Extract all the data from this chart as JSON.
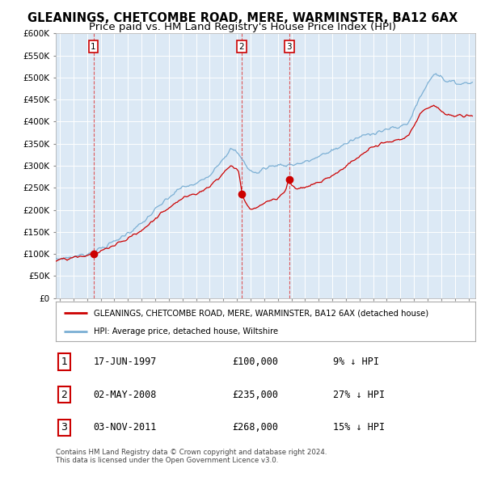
{
  "title": "GLEANINGS, CHETCOMBE ROAD, MERE, WARMINSTER, BA12 6AX",
  "subtitle": "Price paid vs. HM Land Registry's House Price Index (HPI)",
  "title_fontsize": 10.5,
  "subtitle_fontsize": 9.5,
  "fig_bg_color": "#ffffff",
  "plot_bg_color": "#dce9f5",
  "red_line_color": "#cc0000",
  "blue_line_color": "#7bafd4",
  "grid_color": "#ffffff",
  "sale_points": [
    {
      "date_str": "17-JUN-1997",
      "date_num": 1997.46,
      "price": 100000,
      "label": "1"
    },
    {
      "date_str": "02-MAY-2008",
      "date_num": 2008.33,
      "price": 235000,
      "label": "2"
    },
    {
      "date_str": "03-NOV-2011",
      "date_num": 2011.84,
      "price": 268000,
      "label": "3"
    }
  ],
  "vline_dates": [
    1997.46,
    2008.33,
    2011.84
  ],
  "ylim": [
    0,
    600000
  ],
  "yticks": [
    0,
    50000,
    100000,
    150000,
    200000,
    250000,
    300000,
    350000,
    400000,
    450000,
    500000,
    550000,
    600000
  ],
  "xlim_start": 1994.7,
  "xlim_end": 2025.5,
  "legend_labels": [
    "GLEANINGS, CHETCOMBE ROAD, MERE, WARMINSTER, BA12 6AX (detached house)",
    "HPI: Average price, detached house, Wiltshire"
  ],
  "table_entries": [
    {
      "num": "1",
      "date": "17-JUN-1997",
      "price": "£100,000",
      "pct": "9% ↓ HPI"
    },
    {
      "num": "2",
      "date": "02-MAY-2008",
      "price": "£235,000",
      "pct": "27% ↓ HPI"
    },
    {
      "num": "3",
      "date": "03-NOV-2011",
      "price": "£268,000",
      "pct": "15% ↓ HPI"
    }
  ],
  "footnote": "Contains HM Land Registry data © Crown copyright and database right 2024.\nThis data is licensed under the Open Government Licence v3.0."
}
